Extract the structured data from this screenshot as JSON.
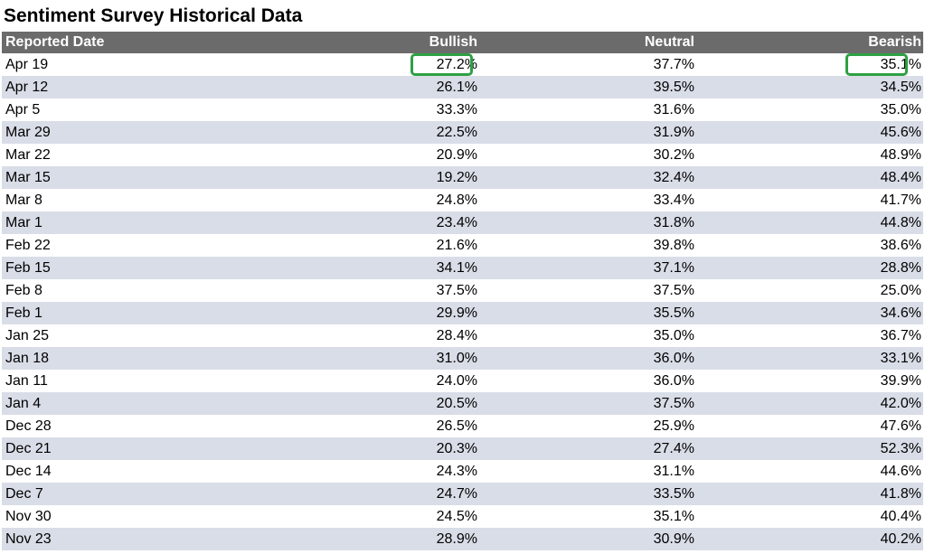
{
  "title": "Sentiment Survey Historical Data",
  "columns": [
    "Reported Date",
    "Bullish",
    "Neutral",
    "Bearish"
  ],
  "rows": [
    [
      "Apr 19",
      "27.2%",
      "37.7%",
      "35.1%"
    ],
    [
      "Apr 12",
      "26.1%",
      "39.5%",
      "34.5%"
    ],
    [
      "Apr 5",
      "33.3%",
      "31.6%",
      "35.0%"
    ],
    [
      "Mar 29",
      "22.5%",
      "31.9%",
      "45.6%"
    ],
    [
      "Mar 22",
      "20.9%",
      "30.2%",
      "48.9%"
    ],
    [
      "Mar 15",
      "19.2%",
      "32.4%",
      "48.4%"
    ],
    [
      "Mar 8",
      "24.8%",
      "33.4%",
      "41.7%"
    ],
    [
      "Mar 1",
      "23.4%",
      "31.8%",
      "44.8%"
    ],
    [
      "Feb 22",
      "21.6%",
      "39.8%",
      "38.6%"
    ],
    [
      "Feb 15",
      "34.1%",
      "37.1%",
      "28.8%"
    ],
    [
      "Feb 8",
      "37.5%",
      "37.5%",
      "25.0%"
    ],
    [
      "Feb 1",
      "29.9%",
      "35.5%",
      "34.6%"
    ],
    [
      "Jan 25",
      "28.4%",
      "35.0%",
      "36.7%"
    ],
    [
      "Jan 18",
      "31.0%",
      "36.0%",
      "33.1%"
    ],
    [
      "Jan 11",
      "24.0%",
      "36.0%",
      "39.9%"
    ],
    [
      "Jan 4",
      "20.5%",
      "37.5%",
      "42.0%"
    ],
    [
      "Dec 28",
      "26.5%",
      "25.9%",
      "47.6%"
    ],
    [
      "Dec 21",
      "20.3%",
      "27.4%",
      "52.3%"
    ],
    [
      "Dec 14",
      "24.3%",
      "31.1%",
      "44.6%"
    ],
    [
      "Dec 7",
      "24.7%",
      "33.5%",
      "41.8%"
    ],
    [
      "Nov 30",
      "24.5%",
      "35.1%",
      "40.4%"
    ],
    [
      "Nov 23",
      "28.9%",
      "30.9%",
      "40.2%"
    ]
  ],
  "colors": {
    "header_bg": "#6b6b6b",
    "stripe_bg": "#d9dde7",
    "highlight": "#2ea043"
  }
}
